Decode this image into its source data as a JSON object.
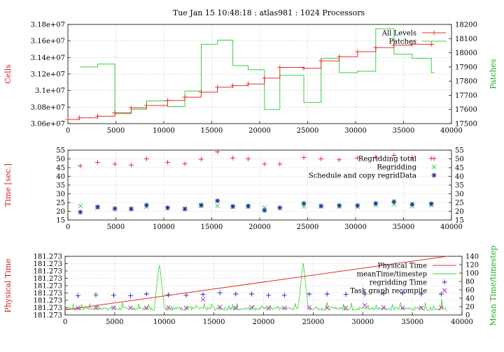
{
  "title": "Tue Jan 15 10:48:18 : atlas981 : 1024 Processors",
  "colors": {
    "red": "#e03030",
    "green": "#3ccf3c",
    "blue": "#1f2fa0",
    "purple": "#2a20b0",
    "magenta": "#c020c0",
    "grid": "#b0b0b0"
  },
  "chart_data": [
    {
      "type": "line",
      "ylabel": "Cells",
      "y2label": "Patches",
      "xlim": [
        0,
        40000
      ],
      "ylim": [
        30600000,
        31800000
      ],
      "y2lim": [
        17500,
        18200
      ],
      "grid": true,
      "legend_position": "top-right",
      "xticks": [
        "0",
        "5000",
        "10000",
        "15000",
        "20000",
        "25000",
        "30000",
        "35000",
        "40000"
      ],
      "yticks": [
        "3.06e+07",
        "3.08e+07",
        "3.1e+07",
        "3.12e+07",
        "3.14e+07",
        "3.16e+07",
        "3.18e+07"
      ],
      "y2ticks": [
        "17500",
        "17600",
        "17700",
        "17800",
        "17900",
        "18000",
        "18100",
        "18200"
      ],
      "series": [
        {
          "name": "All Levels",
          "axis": "left",
          "style": "step-points",
          "x": [
            0,
            1200,
            3100,
            4900,
            6600,
            8200,
            10400,
            12200,
            13900,
            15600,
            17200,
            18800,
            20500,
            22100,
            24600,
            26400,
            28300,
            30200,
            32100,
            34000,
            35900,
            37900
          ],
          "y": [
            30650000,
            30670000,
            30690000,
            30730000,
            30790000,
            30820000,
            30880000,
            30920000,
            30980000,
            31040000,
            31060000,
            31080000,
            31150000,
            31280000,
            31270000,
            31360000,
            31410000,
            31470000,
            31520000,
            31550000,
            31560000,
            31560000
          ]
        },
        {
          "name": "Patches",
          "axis": "right",
          "style": "step",
          "x": [
            1300,
            3100,
            4900,
            6600,
            8200,
            10400,
            12200,
            13900,
            15600,
            17200,
            18800,
            20500,
            22100,
            24600,
            26400,
            28300,
            30200,
            32100,
            34000,
            35900,
            37900
          ],
          "y": [
            17900,
            17920,
            17570,
            17600,
            17660,
            17620,
            17730,
            18060,
            18090,
            17910,
            17880,
            17600,
            17840,
            17650,
            17960,
            17860,
            17870,
            18170,
            17990,
            17960,
            17860
          ]
        }
      ]
    },
    {
      "type": "scatter",
      "ylabel": "Time [sec.]",
      "xlim": [
        0,
        40000
      ],
      "ylim": [
        15,
        55
      ],
      "grid": true,
      "legend_position": "top-right",
      "xticks": [
        "0",
        "5000",
        "10000",
        "15000",
        "20000",
        "25000",
        "30000",
        "35000",
        "40000"
      ],
      "yticks": [
        "15",
        "20",
        "25",
        "30",
        "35",
        "40",
        "45",
        "50",
        "55"
      ],
      "series": [
        {
          "name": "Regridding total",
          "marker": "+",
          "x": [
            1300,
            3100,
            4900,
            6600,
            8200,
            10400,
            12200,
            13900,
            15600,
            17200,
            18800,
            20500,
            22100,
            24600,
            26400,
            28300,
            30200,
            32100,
            34000,
            35900,
            37900
          ],
          "y": [
            46.0,
            48.0,
            47.0,
            46.5,
            50.0,
            48.0,
            47.2,
            49.8,
            54.0,
            50.5,
            50.0,
            47.0,
            47.0,
            50.8,
            50.0,
            49.5,
            50.5,
            51.0,
            52.0,
            50.8,
            50.3
          ]
        },
        {
          "name": "Regridding",
          "marker": "x",
          "x": [
            1300,
            3100,
            4900,
            6600,
            8200,
            10400,
            12200,
            13900,
            15600,
            17200,
            18800,
            20500,
            22100,
            24600,
            26400,
            28300,
            30200,
            32100,
            34000,
            35900,
            37900
          ],
          "y": [
            23.0,
            22.0,
            21.5,
            21.5,
            22.5,
            21.8,
            21.5,
            23.0,
            23.0,
            22.5,
            22.5,
            22.0,
            22.0,
            22.8,
            22.8,
            22.5,
            22.5,
            23.5,
            24.0,
            23.0,
            23.5
          ]
        },
        {
          "name": "Schedule and copy regridData",
          "marker": "*",
          "x": [
            1300,
            3100,
            4900,
            6600,
            8200,
            10400,
            12200,
            13900,
            15600,
            17200,
            18800,
            20500,
            22100,
            24600,
            26400,
            28300,
            30200,
            32100,
            34000,
            35900,
            37900
          ],
          "y": [
            19.5,
            22.5,
            21.5,
            21.3,
            23.5,
            22.0,
            21.3,
            23.5,
            26.0,
            22.8,
            23.0,
            20.5,
            22.0,
            24.5,
            23.0,
            23.3,
            23.3,
            24.5,
            25.5,
            24.0,
            24.3
          ]
        }
      ]
    },
    {
      "type": "line",
      "ylabel": "Physical Time",
      "y2label": "Mean Time/timestep",
      "xlim": [
        0,
        40000
      ],
      "ylim": [
        0,
        8
      ],
      "y2lim": [
        0,
        140
      ],
      "grid": true,
      "legend_position": "top-right",
      "xticks": [
        "0",
        "5000",
        "10000",
        "15000",
        "20000",
        "25000",
        "30000",
        "35000",
        "40000"
      ],
      "yticks": [
        "181.273",
        "181.273",
        "181.273",
        "181.273",
        "181.273",
        "181.273",
        "181.273",
        "181.273",
        "181.273"
      ],
      "y2ticks": [
        "0",
        "20",
        "40",
        "60",
        "80",
        "100",
        "120",
        "140"
      ],
      "series": [
        {
          "name": "Physical Time",
          "axis": "left",
          "style": "line",
          "x": [
            0,
            38500
          ],
          "y": [
            0.7,
            8.0
          ]
        },
        {
          "name": "meanTime/timestep",
          "axis": "right",
          "style": "line",
          "spikes": [
            {
              "x": 9500,
              "y": 125
            },
            {
              "x": 24000,
              "y": 127
            }
          ],
          "baseline": 17,
          "noise_amplitude": 15,
          "x_extent": [
            0,
            38500
          ]
        },
        {
          "name": "regridding Time",
          "axis": "right",
          "marker": "+",
          "x": [
            1300,
            3100,
            4900,
            6600,
            8200,
            10400,
            12200,
            13900,
            15600,
            17200,
            18800,
            20500,
            22100,
            24600,
            26400,
            28300,
            30200,
            32100,
            34000,
            35900,
            37900
          ],
          "y": [
            46,
            48,
            47,
            46,
            50,
            48,
            47,
            49,
            53,
            50,
            50,
            47,
            47,
            50,
            50,
            49,
            50,
            51,
            52,
            50,
            50
          ]
        },
        {
          "name": "Task graph recompile",
          "axis": "right",
          "marker": "x",
          "x": [
            1300,
            3100,
            4900,
            6600,
            8200,
            10400,
            12200,
            13900,
            15600,
            17200,
            18800,
            20500,
            22100,
            24600,
            26400,
            28300,
            30200,
            32100,
            34000,
            35900,
            37900
          ],
          "y": [
            17,
            18,
            17,
            17,
            17,
            18,
            17,
            37,
            19,
            17,
            18,
            17,
            17,
            18,
            17,
            17,
            23,
            18,
            17,
            17,
            18
          ]
        }
      ]
    }
  ]
}
